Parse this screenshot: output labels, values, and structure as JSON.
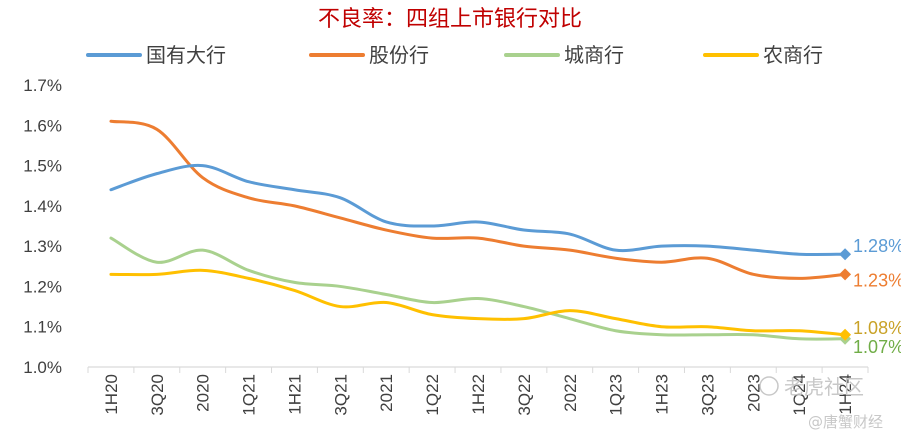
{
  "chart_data": {
    "type": "line",
    "title": "不良率：四组上市银行对比",
    "categories": [
      "1H20",
      "3Q20",
      "2020",
      "1Q21",
      "1H21",
      "3Q21",
      "2021",
      "1Q22",
      "1H22",
      "3Q22",
      "2022",
      "1Q23",
      "1H23",
      "3Q23",
      "2023",
      "1Q24",
      "1H24"
    ],
    "ylim": [
      1.0,
      1.7
    ],
    "yticks": [
      "1.0%",
      "1.1%",
      "1.2%",
      "1.3%",
      "1.4%",
      "1.5%",
      "1.6%",
      "1.7%"
    ],
    "legend_position": "top",
    "grid": false,
    "series": [
      {
        "name": "国有大行",
        "color": "#5b9bd5",
        "values": [
          1.44,
          1.48,
          1.5,
          1.46,
          1.44,
          1.42,
          1.36,
          1.35,
          1.36,
          1.34,
          1.33,
          1.29,
          1.3,
          1.3,
          1.29,
          1.28,
          1.28
        ],
        "end_label": "1.28%"
      },
      {
        "name": "股份行",
        "color": "#ed7d31",
        "values": [
          1.61,
          1.59,
          1.47,
          1.42,
          1.4,
          1.37,
          1.34,
          1.32,
          1.32,
          1.3,
          1.29,
          1.27,
          1.26,
          1.27,
          1.23,
          1.22,
          1.23
        ],
        "end_label": "1.23%"
      },
      {
        "name": "城商行",
        "color": "#a9d18e",
        "values": [
          1.32,
          1.26,
          1.29,
          1.24,
          1.21,
          1.2,
          1.18,
          1.16,
          1.17,
          1.15,
          1.12,
          1.09,
          1.08,
          1.08,
          1.08,
          1.07,
          1.07
        ],
        "end_label": "1.07%"
      },
      {
        "name": "农商行",
        "color": "#ffc000",
        "values": [
          1.23,
          1.23,
          1.24,
          1.22,
          1.19,
          1.15,
          1.16,
          1.13,
          1.12,
          1.12,
          1.14,
          1.12,
          1.1,
          1.1,
          1.09,
          1.09,
          1.08
        ],
        "end_label": "1.08%"
      }
    ],
    "end_label_colors": {
      "国有大行": "#5b9bd5",
      "股份行": "#ed7d31",
      "城商行": "#70ad47",
      "农商行": "#c9a227"
    }
  },
  "watermarks": [
    "老虎社区",
    "@唐蟹财经"
  ]
}
